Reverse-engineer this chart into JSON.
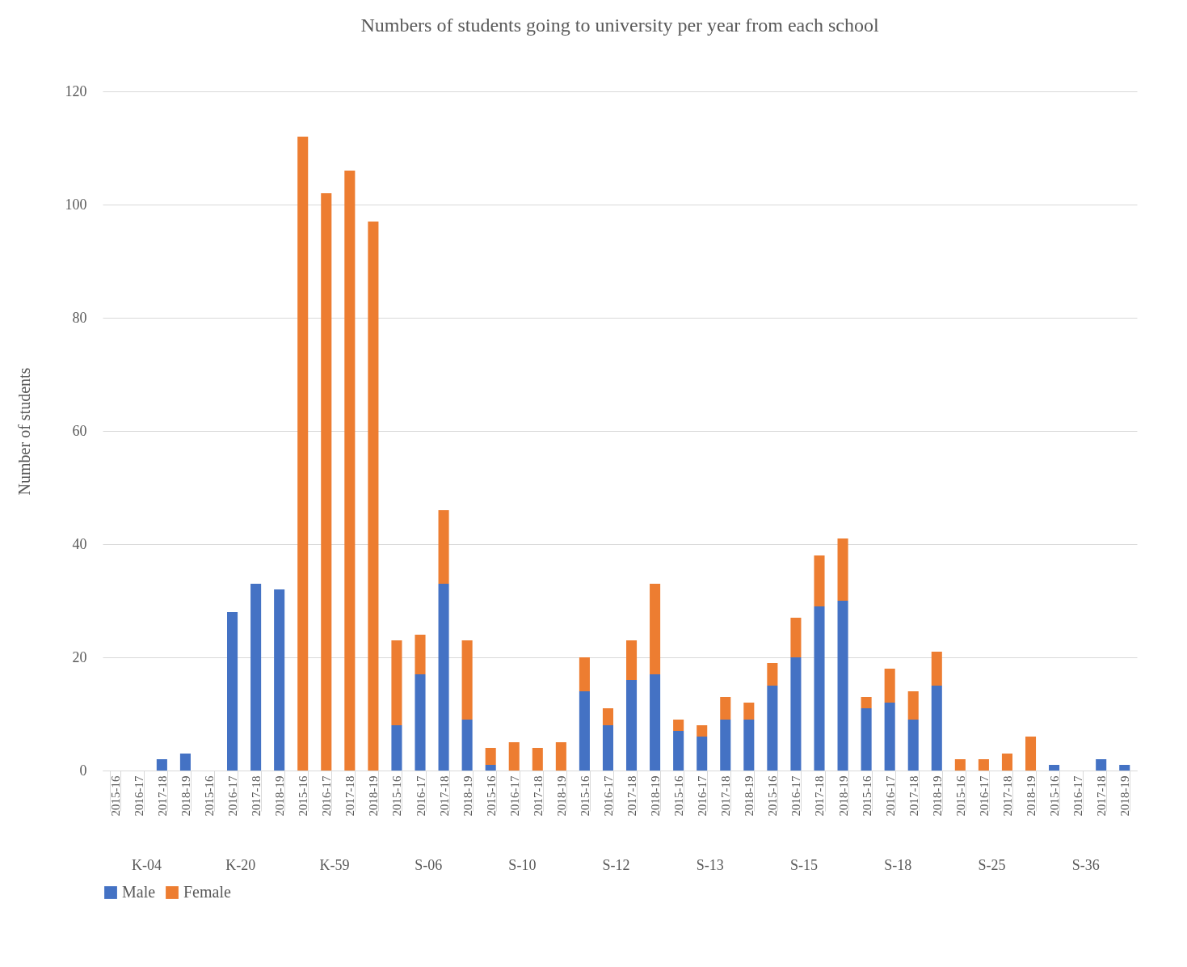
{
  "chart_data": {
    "type": "bar",
    "title": "Numbers of students going to university per year from each school",
    "ylabel": "Number of students",
    "categories": [
      "2015-16",
      "2016-17",
      "2017-18",
      "2018-19",
      "2015-16",
      "2016-17",
      "2017-18",
      "2018-19",
      "2015-16",
      "2016-17",
      "2017-18",
      "2018-19",
      "2015-16",
      "2016-17",
      "2017-18",
      "2018-19",
      "2015-16",
      "2016-17",
      "2017-18",
      "2018-19",
      "2015-16",
      "2016-17",
      "2017-18",
      "2018-19",
      "2015-16",
      "2016-17",
      "2017-18",
      "2018-19",
      "2015-16",
      "2016-17",
      "2017-18",
      "2018-19",
      "2015-16",
      "2016-17",
      "2017-18",
      "2018-19",
      "2015-16",
      "2016-17",
      "2017-18",
      "2018-19",
      "2015-16",
      "2016-17",
      "2017-18",
      "2018-19"
    ],
    "annotations": [
      "K-04",
      "K-20",
      "K-59",
      "S-06",
      "S-10",
      "S-12",
      "S-13",
      "S-15",
      "S-18",
      "S-25",
      "S-36"
    ],
    "stacked": true,
    "series": [
      {
        "name": "Male",
        "color": "#4472c4",
        "values": [
          0,
          0,
          2,
          3,
          0,
          28,
          33,
          32,
          0,
          0,
          0,
          0,
          8,
          17,
          33,
          9,
          1,
          0,
          0,
          0,
          14,
          8,
          16,
          17,
          7,
          6,
          9,
          9,
          15,
          20,
          29,
          30,
          11,
          12,
          9,
          15,
          0,
          0,
          0,
          0,
          1,
          0,
          2,
          1
        ]
      },
      {
        "name": "Female",
        "color": "#ed7d31",
        "values": [
          0,
          0,
          0,
          0,
          0,
          0,
          0,
          0,
          112,
          102,
          106,
          97,
          15,
          7,
          13,
          14,
          3,
          5,
          4,
          5,
          6,
          3,
          7,
          16,
          2,
          2,
          4,
          3,
          4,
          7,
          9,
          11,
          2,
          6,
          5,
          6,
          2,
          2,
          3,
          6,
          0,
          0,
          0,
          0
        ]
      }
    ],
    "ylim": [
      0,
      120
    ],
    "yticks": [
      0,
      20,
      40,
      60,
      80,
      100,
      120
    ],
    "grid": "y",
    "legend": "bottom"
  }
}
